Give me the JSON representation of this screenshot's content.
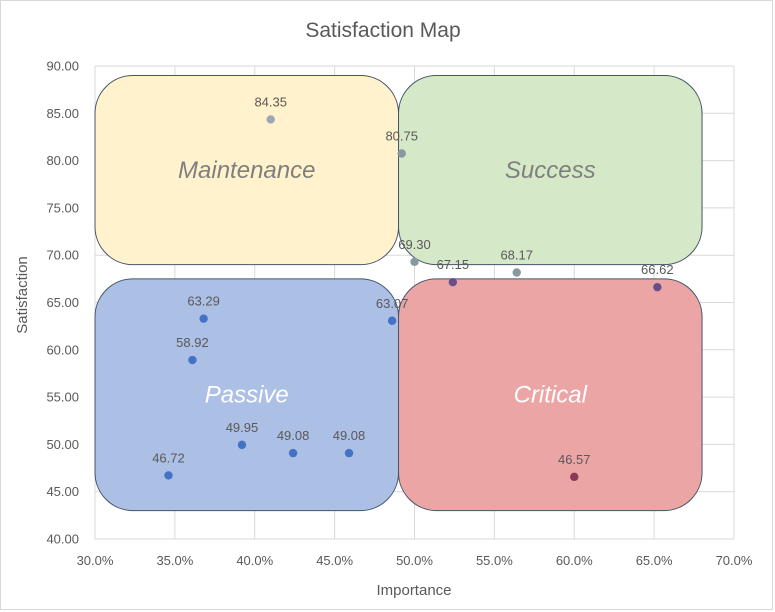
{
  "chart_data": {
    "type": "scatter",
    "title": "Satisfaction Map",
    "xlabel": "Importance",
    "ylabel": "Satisfaction",
    "xlim": [
      0.3,
      0.7
    ],
    "ylim": [
      40,
      90
    ],
    "x_ticks": [
      "30.0%",
      "35.0%",
      "40.0%",
      "45.0%",
      "50.0%",
      "55.0%",
      "60.0%",
      "65.0%",
      "70.0%"
    ],
    "y_ticks": [
      "40.00",
      "45.00",
      "50.00",
      "55.00",
      "60.00",
      "65.00",
      "70.00",
      "75.00",
      "80.00",
      "85.00",
      "90.00"
    ],
    "grid": true,
    "quadrants": [
      {
        "label": "Maintenance",
        "x_range": [
          0.3,
          0.49
        ],
        "y_range": [
          69.0,
          89.0
        ],
        "fill": "#fff2cc",
        "stroke": "#44546a",
        "text_color": "#7f7f7f"
      },
      {
        "label": "Success",
        "x_range": [
          0.49,
          0.68
        ],
        "y_range": [
          69.0,
          89.0
        ],
        "fill": "#d5e8c8",
        "stroke": "#44546a",
        "text_color": "#7f7f7f"
      },
      {
        "label": "Passive",
        "x_range": [
          0.3,
          0.49
        ],
        "y_range": [
          43.0,
          67.5
        ],
        "fill": "#acbfe4",
        "stroke": "#44546a",
        "text_color": "#ffffff"
      },
      {
        "label": "Critical",
        "x_range": [
          0.49,
          0.68
        ],
        "y_range": [
          43.0,
          67.5
        ],
        "fill": "#eba5a5",
        "stroke": "#44546a",
        "text_color": "#ffffff"
      }
    ],
    "points": [
      {
        "x": 0.41,
        "y": 84.35,
        "label": "84.35",
        "color": "#9aa7b5"
      },
      {
        "x": 0.492,
        "y": 80.75,
        "label": "80.75",
        "color": "#849aa0"
      },
      {
        "x": 0.5,
        "y": 69.3,
        "label": "69.30",
        "color": "#849aa0"
      },
      {
        "x": 0.524,
        "y": 67.15,
        "label": "67.15",
        "color": "#6a4e8a"
      },
      {
        "x": 0.564,
        "y": 68.17,
        "label": "68.17",
        "color": "#849aa0"
      },
      {
        "x": 0.652,
        "y": 66.62,
        "label": "66.62",
        "color": "#6a4e8a"
      },
      {
        "x": 0.368,
        "y": 63.29,
        "label": "63.29",
        "color": "#4472c4"
      },
      {
        "x": 0.486,
        "y": 63.07,
        "label": "63.07",
        "color": "#4472c4"
      },
      {
        "x": 0.361,
        "y": 58.92,
        "label": "58.92",
        "color": "#4472c4"
      },
      {
        "x": 0.392,
        "y": 49.95,
        "label": "49.95",
        "color": "#4472c4"
      },
      {
        "x": 0.424,
        "y": 49.08,
        "label": "49.08",
        "color": "#4472c4"
      },
      {
        "x": 0.459,
        "y": 49.08,
        "label": "49.08",
        "color": "#4472c4"
      },
      {
        "x": 0.346,
        "y": 46.72,
        "label": "46.72",
        "color": "#4472c4"
      },
      {
        "x": 0.6,
        "y": 46.57,
        "label": "46.57",
        "color": "#8b3a55"
      }
    ]
  }
}
